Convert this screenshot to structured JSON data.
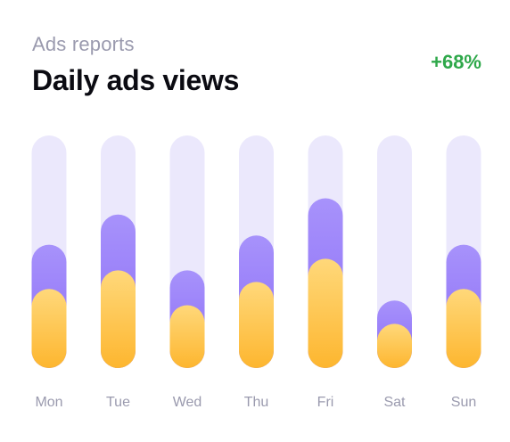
{
  "header": {
    "subtitle": "Ads reports",
    "title": "Daily ads views",
    "change": "+68%"
  },
  "colors": {
    "track": "#ebe8fc",
    "purple_top": "#a792fb",
    "purple_bottom": "#8b6cf6",
    "yellow_top": "#ffd87a",
    "yellow_bottom": "#fdb62f",
    "change": "#2ea84a",
    "label": "#9a9aae"
  },
  "chart_data": {
    "type": "bar",
    "categories": [
      "Mon",
      "Tue",
      "Wed",
      "Thu",
      "Fri",
      "Sat",
      "Sun"
    ],
    "ylim": [
      0,
      100
    ],
    "series": [
      {
        "values": [
          53,
          66,
          42,
          57,
          73,
          29,
          53
        ]
      },
      {
        "values": [
          34,
          42,
          27,
          37,
          47,
          19,
          34
        ]
      }
    ]
  }
}
